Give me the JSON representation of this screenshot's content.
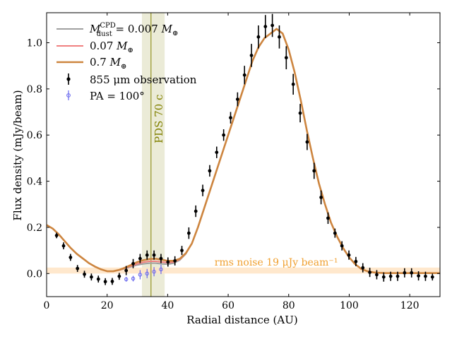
{
  "chart_data": {
    "type": "line",
    "title": "",
    "xlabel": "Radial distance (AU)",
    "ylabel": "Flux density (mJy/beam)",
    "xlim": [
      0,
      130
    ],
    "ylim": [
      -0.1,
      1.13
    ],
    "x_ticks": [
      0,
      20,
      40,
      60,
      80,
      100,
      120
    ],
    "x_tick_labels": [
      "0",
      "20",
      "40",
      "60",
      "80",
      "100",
      "120"
    ],
    "y_ticks": [
      0.0,
      0.2,
      0.4,
      0.6,
      0.8,
      1.0
    ],
    "y_tick_labels": [
      "0.0",
      "0.2",
      "0.4",
      "0.6",
      "0.8",
      "1.0"
    ],
    "annotations": {
      "planet_label": "PDS 70 c",
      "planet_position_au": 34.5,
      "planet_band_au": [
        31.5,
        39.0
      ],
      "rms_label": "rms noise 19 μJy beam⁻¹",
      "rms_level": 0.019,
      "rms_band": [
        0.0,
        0.026
      ]
    },
    "legend": {
      "entries": [
        {
          "label": "M_dust^CPD = 0.007 M⊕",
          "color": "#a0a0a0",
          "kind": "line"
        },
        {
          "label": "0.07 M⊕",
          "color": "#f08080",
          "kind": "line"
        },
        {
          "label": "0.7 M⊕",
          "color": "#cd853f",
          "kind": "line"
        },
        {
          "label": "855 μm observation",
          "color": "#000000",
          "kind": "errorbar"
        },
        {
          "label": "PA = 100°",
          "color": "#6666ee",
          "kind": "errorbar"
        }
      ],
      "mdust_symbol": "M",
      "mdust_sub": "dust",
      "mdust_sup": "CPD",
      "mdust_value": " = 0.007 ",
      "earth_mass": "M",
      "earth_symbol": "⊕",
      "value_007": "0.07 ",
      "value_07": "0.7 ",
      "obs_label": "855 μm observation",
      "pa_label": "PA = 100°"
    },
    "series": [
      {
        "name": "0.007 Mearth",
        "color": "#a0a0a0",
        "width": 2,
        "x": [
          0,
          2,
          4,
          6,
          8,
          10,
          12,
          14,
          16,
          18,
          20,
          22,
          24,
          26,
          28,
          30,
          32,
          34,
          36,
          38,
          40,
          42,
          44,
          46,
          48,
          50,
          52,
          54,
          56,
          58,
          60,
          62,
          64,
          66,
          68,
          70,
          72,
          74,
          76,
          78,
          80,
          82,
          84,
          86,
          88,
          90,
          92,
          94,
          96,
          98,
          100,
          102,
          104,
          106,
          108,
          110,
          112,
          114,
          116,
          118,
          120,
          122,
          124,
          126,
          128,
          130
        ],
        "y": [
          0.21,
          0.195,
          0.17,
          0.14,
          0.11,
          0.085,
          0.065,
          0.045,
          0.03,
          0.018,
          0.01,
          0.01,
          0.015,
          0.022,
          0.03,
          0.037,
          0.042,
          0.045,
          0.045,
          0.042,
          0.04,
          0.045,
          0.058,
          0.085,
          0.13,
          0.2,
          0.28,
          0.36,
          0.44,
          0.52,
          0.6,
          0.68,
          0.76,
          0.84,
          0.92,
          0.98,
          1.02,
          1.04,
          1.06,
          1.04,
          0.97,
          0.87,
          0.75,
          0.62,
          0.5,
          0.39,
          0.3,
          0.22,
          0.16,
          0.11,
          0.07,
          0.04,
          0.02,
          0.01,
          0.005,
          0.003,
          0.002,
          0.002,
          0.002,
          0.002,
          0.002,
          0.002,
          0.002,
          0.002,
          0.002,
          0.002
        ]
      },
      {
        "name": "0.07 Mearth",
        "color": "#f08080",
        "width": 2,
        "x": [
          0,
          2,
          4,
          6,
          8,
          10,
          12,
          14,
          16,
          18,
          20,
          22,
          24,
          26,
          28,
          30,
          32,
          34,
          36,
          38,
          40,
          42,
          44,
          46,
          48,
          50,
          52,
          54,
          56,
          58,
          60,
          62,
          64,
          66,
          68,
          70,
          72,
          74,
          76,
          78,
          80,
          82,
          84,
          86,
          88,
          90,
          92,
          94,
          96,
          98,
          100,
          102,
          104,
          106,
          108,
          110,
          112,
          114,
          116,
          118,
          120,
          122,
          124,
          126,
          128,
          130
        ],
        "y": [
          0.21,
          0.195,
          0.17,
          0.14,
          0.11,
          0.085,
          0.065,
          0.045,
          0.03,
          0.018,
          0.01,
          0.01,
          0.015,
          0.024,
          0.033,
          0.042,
          0.049,
          0.053,
          0.053,
          0.05,
          0.047,
          0.05,
          0.061,
          0.087,
          0.13,
          0.2,
          0.28,
          0.36,
          0.44,
          0.52,
          0.6,
          0.68,
          0.76,
          0.84,
          0.92,
          0.98,
          1.02,
          1.04,
          1.06,
          1.04,
          0.97,
          0.87,
          0.75,
          0.62,
          0.5,
          0.39,
          0.3,
          0.22,
          0.16,
          0.11,
          0.07,
          0.04,
          0.02,
          0.01,
          0.005,
          0.003,
          0.002,
          0.002,
          0.002,
          0.002,
          0.002,
          0.002,
          0.002,
          0.002,
          0.002,
          0.002
        ]
      },
      {
        "name": "0.7 Mearth",
        "color": "#cd853f",
        "width": 2.6,
        "x": [
          0,
          2,
          4,
          6,
          8,
          10,
          12,
          14,
          16,
          18,
          20,
          22,
          24,
          26,
          28,
          30,
          32,
          34,
          36,
          38,
          40,
          42,
          44,
          46,
          48,
          50,
          52,
          54,
          56,
          58,
          60,
          62,
          64,
          66,
          68,
          70,
          72,
          74,
          76,
          78,
          80,
          82,
          84,
          86,
          88,
          90,
          92,
          94,
          96,
          98,
          100,
          102,
          104,
          106,
          108,
          110,
          112,
          114,
          116,
          118,
          120,
          122,
          124,
          126,
          128,
          130
        ],
        "y": [
          0.21,
          0.195,
          0.17,
          0.14,
          0.11,
          0.085,
          0.065,
          0.045,
          0.03,
          0.018,
          0.01,
          0.01,
          0.016,
          0.026,
          0.038,
          0.05,
          0.058,
          0.063,
          0.064,
          0.06,
          0.055,
          0.055,
          0.064,
          0.088,
          0.13,
          0.2,
          0.28,
          0.36,
          0.44,
          0.52,
          0.6,
          0.68,
          0.76,
          0.84,
          0.92,
          0.98,
          1.02,
          1.04,
          1.06,
          1.04,
          0.97,
          0.87,
          0.75,
          0.62,
          0.5,
          0.39,
          0.3,
          0.22,
          0.16,
          0.11,
          0.07,
          0.04,
          0.02,
          0.01,
          0.005,
          0.003,
          0.002,
          0.002,
          0.002,
          0.002,
          0.002,
          0.002,
          0.002,
          0.002,
          0.002,
          0.002
        ]
      }
    ],
    "observations": {
      "name": "855 um observation",
      "color": "#000000",
      "x": [
        3.3,
        5.6,
        7.9,
        10.2,
        12.5,
        14.8,
        17.1,
        19.4,
        21.7,
        24.0,
        26.3,
        28.6,
        30.9,
        33.2,
        35.5,
        37.8,
        40.1,
        42.4,
        44.7,
        47.0,
        49.3,
        51.6,
        53.9,
        56.2,
        58.5,
        60.8,
        63.1,
        65.4,
        67.7,
        70.0,
        72.3,
        74.6,
        76.9,
        79.2,
        81.5,
        83.8,
        86.1,
        88.4,
        90.7,
        93.0,
        95.3,
        97.6,
        99.9,
        102.2,
        104.5,
        106.8,
        109.1,
        111.4,
        113.7,
        116.0,
        118.3,
        120.6,
        122.9,
        125.2,
        127.5
      ],
      "y": [
        0.165,
        0.12,
        0.07,
        0.022,
        -0.003,
        -0.015,
        -0.024,
        -0.035,
        -0.034,
        -0.012,
        0.013,
        0.043,
        0.065,
        0.08,
        0.08,
        0.065,
        0.05,
        0.055,
        0.1,
        0.175,
        0.27,
        0.36,
        0.445,
        0.525,
        0.6,
        0.675,
        0.755,
        0.86,
        0.945,
        1.025,
        1.07,
        1.075,
        1.025,
        0.935,
        0.82,
        0.695,
        0.57,
        0.445,
        0.33,
        0.24,
        0.175,
        0.12,
        0.08,
        0.052,
        0.025,
        0.005,
        -0.005,
        -0.015,
        -0.012,
        -0.012,
        0.003,
        0.003,
        -0.01,
        -0.012,
        -0.015
      ],
      "yerr": [
        0.012,
        0.015,
        0.015,
        0.015,
        0.015,
        0.015,
        0.015,
        0.015,
        0.015,
        0.015,
        0.02,
        0.02,
        0.02,
        0.02,
        0.02,
        0.02,
        0.02,
        0.02,
        0.02,
        0.025,
        0.025,
        0.025,
        0.025,
        0.025,
        0.025,
        0.025,
        0.03,
        0.04,
        0.05,
        0.05,
        0.05,
        0.05,
        0.05,
        0.05,
        0.045,
        0.04,
        0.035,
        0.035,
        0.03,
        0.025,
        0.02,
        0.02,
        0.02,
        0.02,
        0.02,
        0.02,
        0.02,
        0.02,
        0.02,
        0.02,
        0.02,
        0.02,
        0.02,
        0.02,
        0.015
      ]
    },
    "pa_observations": {
      "name": "PA = 100 deg",
      "color": "#6666ee",
      "x": [
        26.3,
        28.6,
        30.9,
        33.2,
        35.5,
        37.8
      ],
      "y": [
        -0.025,
        -0.022,
        -0.005,
        0.0,
        0.008,
        0.018
      ],
      "yerr": [
        0.01,
        0.012,
        0.02,
        0.02,
        0.02,
        0.02
      ]
    }
  }
}
